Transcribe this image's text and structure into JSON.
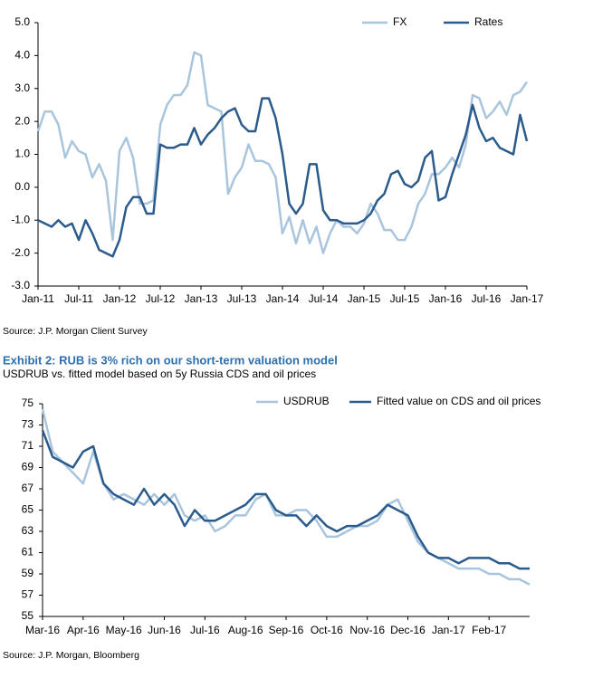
{
  "chart_data": [
    {
      "type": "line",
      "categories": [
        "Jan-11",
        null,
        null,
        null,
        null,
        null,
        "Jul-11",
        null,
        null,
        null,
        null,
        null,
        "Jan-12",
        null,
        null,
        null,
        null,
        null,
        "Jul-12",
        null,
        null,
        null,
        null,
        null,
        "Jan-13",
        null,
        null,
        null,
        null,
        null,
        "Jul-13",
        null,
        null,
        null,
        null,
        null,
        "Jan-14",
        null,
        null,
        null,
        null,
        null,
        "Jul-14",
        null,
        null,
        null,
        null,
        null,
        "Jan-15",
        null,
        null,
        null,
        null,
        null,
        "Jul-15",
        null,
        null,
        null,
        null,
        null,
        "Jan-16",
        null,
        null,
        null,
        null,
        null,
        "Jul-16",
        null,
        null,
        null,
        null,
        null,
        "Jan-17"
      ],
      "series": [
        {
          "name": "FX",
          "color": "#a9c5de",
          "values": [
            1.7,
            2.3,
            2.3,
            1.9,
            0.9,
            1.4,
            1.1,
            1.0,
            0.3,
            0.7,
            0.2,
            -1.6,
            1.1,
            1.5,
            0.9,
            -0.5,
            -0.5,
            -0.4,
            1.9,
            2.5,
            2.8,
            2.8,
            3.1,
            4.1,
            4.0,
            2.5,
            2.4,
            2.3,
            -0.2,
            0.3,
            0.6,
            1.3,
            0.8,
            0.8,
            0.7,
            0.3,
            -1.4,
            -0.9,
            -1.7,
            -1.0,
            -1.7,
            -1.2,
            -2.0,
            -1.4,
            -1.0,
            -1.2,
            -1.2,
            -1.4,
            -1.1,
            -0.5,
            -0.8,
            -1.3,
            -1.3,
            -1.6,
            -1.6,
            -1.2,
            -0.5,
            -0.2,
            0.4,
            0.4,
            0.6,
            0.9,
            0.6,
            1.3,
            2.8,
            2.7,
            2.1,
            2.3,
            2.6,
            2.2,
            2.8,
            2.9,
            3.2
          ]
        },
        {
          "name": "Rates",
          "color": "#2b5b8c",
          "values": [
            -1.0,
            -1.1,
            -1.2,
            -1.0,
            -1.2,
            -1.1,
            -1.6,
            -1.0,
            -1.4,
            -1.9,
            -2.0,
            -2.1,
            -1.6,
            -0.6,
            -0.3,
            -0.3,
            -0.8,
            -0.8,
            1.3,
            1.2,
            1.2,
            1.3,
            1.3,
            1.8,
            1.3,
            1.6,
            1.8,
            2.1,
            2.3,
            2.4,
            1.9,
            1.7,
            1.7,
            2.7,
            2.7,
            2.1,
            1.0,
            -0.5,
            -0.8,
            -0.5,
            0.7,
            0.7,
            -0.7,
            -1.0,
            -1.0,
            -1.1,
            -1.1,
            -1.1,
            -1.0,
            -0.8,
            -0.4,
            -0.2,
            0.4,
            0.5,
            0.1,
            0.0,
            0.2,
            0.9,
            1.1,
            -0.4,
            -0.3,
            0.4,
            1.0,
            1.6,
            2.5,
            1.8,
            1.4,
            1.5,
            1.2,
            1.1,
            1.0,
            2.2,
            1.4
          ]
        }
      ],
      "ylim": [
        -3,
        5
      ],
      "yticks": [
        {
          "value": 5,
          "label": "5.0"
        },
        {
          "value": 4,
          "label": "4.0"
        },
        {
          "value": 3,
          "label": "3.0"
        },
        {
          "value": 2,
          "label": "2.0"
        },
        {
          "value": 1,
          "label": "1.0"
        },
        {
          "value": 0,
          "label": "0.0"
        },
        {
          "value": -1,
          "label": "-1.0"
        },
        {
          "value": -2,
          "label": "-2.0"
        },
        {
          "value": -3,
          "label": "-3.0"
        }
      ],
      "legend": "top-right",
      "source": "Source: J.P. Morgan Client Survey"
    },
    {
      "type": "line",
      "title": "Exhibit 2: RUB is 3% rich on our short-term valuation model",
      "subtitle": "USDRUB vs. fitted model based on 5y Russia CDS and oil prices",
      "categories": [
        "Mar-16",
        null,
        null,
        null,
        "Apr-16",
        null,
        null,
        null,
        "May-16",
        null,
        null,
        null,
        "Jun-16",
        null,
        null,
        null,
        "Jul-16",
        null,
        null,
        null,
        "Aug-16",
        null,
        null,
        null,
        "Sep-16",
        null,
        null,
        null,
        "Oct-16",
        null,
        null,
        null,
        "Nov-16",
        null,
        null,
        null,
        "Dec-16",
        null,
        null,
        null,
        "Jan-17",
        null,
        null,
        null,
        "Feb-17",
        null,
        null,
        null,
        null
      ],
      "series": [
        {
          "name": "USDRUB",
          "color": "#a9c5de",
          "values": [
            74.5,
            70.5,
            69.5,
            68.5,
            67.5,
            70.5,
            67.5,
            66.0,
            66.5,
            66.0,
            65.5,
            66.5,
            65.5,
            66.5,
            64.5,
            64.0,
            64.5,
            63.0,
            63.5,
            64.5,
            64.5,
            66.0,
            66.5,
            64.5,
            64.5,
            65.0,
            65.0,
            64.0,
            62.5,
            62.5,
            63.0,
            63.5,
            63.5,
            64.0,
            65.5,
            66.0,
            64.0,
            62.0,
            61.0,
            60.5,
            60.0,
            59.5,
            59.5,
            59.5,
            59.0,
            59.0,
            58.5,
            58.5,
            58.0
          ]
        },
        {
          "name": "Fitted value on CDS and oil prices",
          "color": "#2b5b8c",
          "values": [
            72.5,
            70.0,
            69.5,
            69.0,
            70.5,
            71.0,
            67.5,
            66.5,
            66.0,
            65.5,
            67.0,
            65.5,
            66.5,
            65.5,
            63.5,
            65.0,
            64.0,
            64.0,
            64.5,
            65.0,
            65.5,
            66.5,
            66.5,
            65.0,
            64.5,
            64.5,
            63.5,
            64.5,
            63.5,
            63.0,
            63.5,
            63.5,
            64.0,
            64.5,
            65.5,
            65.0,
            64.5,
            62.5,
            61.0,
            60.5,
            60.5,
            60.0,
            60.5,
            60.5,
            60.5,
            60.0,
            60.0,
            59.5,
            59.5
          ]
        }
      ],
      "ylim": [
        55,
        75
      ],
      "yticks": [
        75,
        73,
        71,
        69,
        67,
        65,
        63,
        61,
        59,
        57,
        55
      ],
      "legend": "top-right",
      "source": "Source: J.P. Morgan, Bloomberg"
    }
  ]
}
